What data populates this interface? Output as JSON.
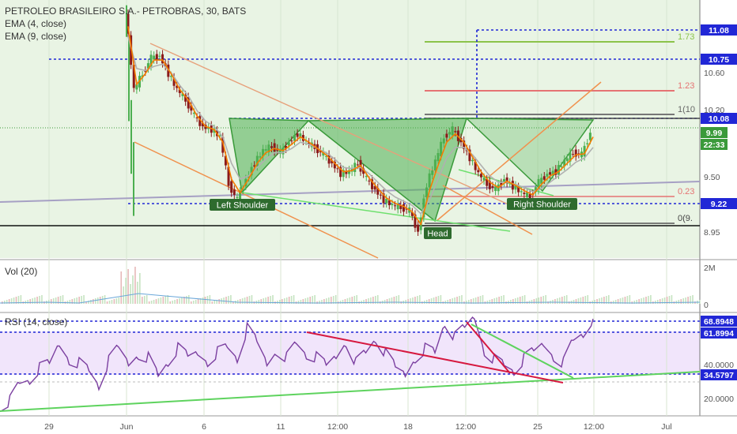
{
  "header": {
    "title": "PETROLEO BRASILEIRO S.A.- PETROBRAS, 30, BATS",
    "ema4": "EMA (4, close)",
    "ema9": "EMA (9, close)"
  },
  "volume_pane": {
    "label": "Vol (20)",
    "axis_ticks": [
      "2M",
      "0"
    ]
  },
  "rsi_pane": {
    "label": "RSI (14, close)",
    "axis_ticks": [
      "40.0000",
      "20.0000"
    ]
  },
  "price_axis_ticks": [
    "11.08",
    "10.60",
    "10.20",
    "9.50",
    "8.95"
  ],
  "price_tags": [
    {
      "text": "11.08",
      "color": "#2127d6"
    },
    {
      "text": "10.75",
      "color": "#2127d6"
    },
    {
      "text": "10.08",
      "color": "#2127d6"
    },
    {
      "text": "9.99",
      "color": "#3a9a3a"
    },
    {
      "text": "22:33",
      "color": "#3a9a3a"
    },
    {
      "text": "9.22",
      "color": "#2127d6"
    }
  ],
  "rsi_tags": [
    {
      "text": "68.8948",
      "color": "#2127d6"
    },
    {
      "text": "61.8994",
      "color": "#2127d6"
    },
    {
      "text": "34.5797",
      "color": "#2127d6"
    }
  ],
  "fib_labels": [
    {
      "text": "1.73",
      "color": "#8bc34a"
    },
    {
      "text": "1.23",
      "color": "#e57373"
    },
    {
      "text": "1(10",
      "color": "#666666"
    },
    {
      "text": "0.23",
      "color": "#e57373"
    },
    {
      "text": "0(9.",
      "color": "#444444"
    }
  ],
  "pattern_labels": {
    "left": "Left Shoulder",
    "head": "Head",
    "right": "Right Shoulder"
  },
  "x_ticks": [
    "29",
    "Jun",
    "6",
    "11",
    "12:00",
    "18",
    "12:00",
    "25",
    "12:00",
    "Jul"
  ],
  "colors": {
    "ema4": "#f57c00",
    "ema9": "#b0b0b0",
    "up": "#4caf50",
    "down": "#8b1a1a",
    "fill": "#2e9b2e",
    "rsi": "#7b3fa0"
  },
  "chart_data": {
    "type": "candlestick",
    "title": "PETROLEO BRASILEIRO S.A.- PETROBRAS, 30, BATS",
    "price_points": [
      [
        0,
        11.15
      ],
      [
        3,
        10.4
      ],
      [
        6,
        10.55
      ],
      [
        9,
        10.7
      ],
      [
        12,
        10.72
      ],
      [
        15,
        10.55
      ],
      [
        18,
        10.4
      ],
      [
        21,
        10.3
      ],
      [
        24,
        10.15
      ],
      [
        27,
        10.05
      ],
      [
        30,
        10.02
      ],
      [
        33,
        9.95
      ],
      [
        36,
        9.5
      ],
      [
        39,
        9.35
      ],
      [
        42,
        9.55
      ],
      [
        45,
        9.7
      ],
      [
        48,
        9.82
      ],
      [
        51,
        9.86
      ],
      [
        54,
        9.8
      ],
      [
        57,
        9.9
      ],
      [
        60,
        9.98
      ],
      [
        63,
        9.9
      ],
      [
        66,
        9.85
      ],
      [
        69,
        9.78
      ],
      [
        72,
        9.7
      ],
      [
        75,
        9.6
      ],
      [
        78,
        9.62
      ],
      [
        81,
        9.7
      ],
      [
        84,
        9.55
      ],
      [
        87,
        9.45
      ],
      [
        90,
        9.35
      ],
      [
        93,
        9.3
      ],
      [
        96,
        9.28
      ],
      [
        99,
        9.25
      ],
      [
        102,
        9.05
      ],
      [
        105,
        9.5
      ],
      [
        108,
        9.72
      ],
      [
        111,
        9.95
      ],
      [
        114,
        10.02
      ],
      [
        117,
        9.9
      ],
      [
        120,
        9.75
      ],
      [
        123,
        9.6
      ],
      [
        126,
        9.5
      ],
      [
        129,
        9.45
      ],
      [
        132,
        9.55
      ],
      [
        135,
        9.48
      ],
      [
        138,
        9.42
      ],
      [
        141,
        9.38
      ],
      [
        144,
        9.52
      ],
      [
        147,
        9.6
      ],
      [
        150,
        9.62
      ],
      [
        153,
        9.72
      ],
      [
        156,
        9.8
      ],
      [
        159,
        9.78
      ],
      [
        162,
        9.99
      ]
    ],
    "ema4": [
      [
        0,
        11.0
      ],
      [
        3,
        10.45
      ],
      [
        6,
        10.55
      ],
      [
        9,
        10.68
      ],
      [
        12,
        10.68
      ],
      [
        15,
        10.55
      ],
      [
        18,
        10.4
      ],
      [
        21,
        10.3
      ],
      [
        24,
        10.15
      ],
      [
        27,
        10.05
      ],
      [
        30,
        10.02
      ],
      [
        33,
        9.9
      ],
      [
        36,
        9.55
      ],
      [
        39,
        9.42
      ],
      [
        42,
        9.55
      ],
      [
        45,
        9.7
      ],
      [
        48,
        9.8
      ],
      [
        51,
        9.84
      ],
      [
        54,
        9.82
      ],
      [
        57,
        9.88
      ],
      [
        60,
        9.95
      ],
      [
        63,
        9.9
      ],
      [
        66,
        9.84
      ],
      [
        69,
        9.78
      ],
      [
        72,
        9.7
      ],
      [
        75,
        9.62
      ],
      [
        78,
        9.63
      ],
      [
        81,
        9.68
      ],
      [
        84,
        9.56
      ],
      [
        87,
        9.46
      ],
      [
        90,
        9.37
      ],
      [
        93,
        9.32
      ],
      [
        96,
        9.29
      ],
      [
        99,
        9.24
      ],
      [
        102,
        9.12
      ],
      [
        105,
        9.44
      ],
      [
        108,
        9.68
      ],
      [
        111,
        9.9
      ],
      [
        114,
        9.98
      ],
      [
        117,
        9.9
      ],
      [
        120,
        9.76
      ],
      [
        123,
        9.62
      ],
      [
        126,
        9.52
      ],
      [
        129,
        9.47
      ],
      [
        132,
        9.53
      ],
      [
        135,
        9.49
      ],
      [
        138,
        9.44
      ],
      [
        141,
        9.4
      ],
      [
        144,
        9.5
      ],
      [
        147,
        9.58
      ],
      [
        150,
        9.62
      ],
      [
        153,
        9.7
      ],
      [
        156,
        9.78
      ],
      [
        159,
        9.79
      ],
      [
        162,
        9.95
      ]
    ],
    "ema9": [
      [
        0,
        10.9
      ],
      [
        3,
        10.6
      ],
      [
        6,
        10.58
      ],
      [
        9,
        10.62
      ],
      [
        12,
        10.64
      ],
      [
        15,
        10.56
      ],
      [
        18,
        10.44
      ],
      [
        21,
        10.34
      ],
      [
        24,
        10.2
      ],
      [
        27,
        10.1
      ],
      [
        30,
        10.05
      ],
      [
        33,
        9.95
      ],
      [
        36,
        9.7
      ],
      [
        39,
        9.55
      ],
      [
        42,
        9.58
      ],
      [
        45,
        9.66
      ],
      [
        48,
        9.74
      ],
      [
        51,
        9.8
      ],
      [
        54,
        9.8
      ],
      [
        57,
        9.84
      ],
      [
        60,
        9.9
      ],
      [
        63,
        9.88
      ],
      [
        66,
        9.84
      ],
      [
        69,
        9.8
      ],
      [
        72,
        9.74
      ],
      [
        75,
        9.66
      ],
      [
        78,
        9.65
      ],
      [
        81,
        9.66
      ],
      [
        84,
        9.6
      ],
      [
        87,
        9.52
      ],
      [
        90,
        9.44
      ],
      [
        93,
        9.38
      ],
      [
        96,
        9.34
      ],
      [
        99,
        9.3
      ],
      [
        102,
        9.22
      ],
      [
        105,
        9.35
      ],
      [
        108,
        9.55
      ],
      [
        111,
        9.75
      ],
      [
        114,
        9.85
      ],
      [
        117,
        9.85
      ],
      [
        120,
        9.78
      ],
      [
        123,
        9.68
      ],
      [
        126,
        9.58
      ],
      [
        129,
        9.52
      ],
      [
        132,
        9.52
      ],
      [
        135,
        9.5
      ],
      [
        138,
        9.47
      ],
      [
        141,
        9.43
      ],
      [
        144,
        9.46
      ],
      [
        147,
        9.52
      ],
      [
        150,
        9.58
      ],
      [
        153,
        9.64
      ],
      [
        156,
        9.71
      ],
      [
        159,
        9.75
      ],
      [
        162,
        9.85
      ]
    ],
    "neckline": 10.08,
    "levels": {
      "fib_1_73": 11.0,
      "fib_1_23": 10.44,
      "fib_1": 10.12,
      "fib_0_23": 9.3,
      "fib_0": 9.0,
      "dashed_11_08": 11.08,
      "dashed_10_75": 10.75,
      "dashed_9_22": 9.22,
      "last_price": 9.99
    },
    "rsi": [
      [
        0,
        21
      ],
      [
        5,
        24
      ],
      [
        10,
        33
      ],
      [
        15,
        35
      ],
      [
        20,
        41
      ],
      [
        25,
        43
      ],
      [
        30,
        55
      ],
      [
        35,
        47
      ],
      [
        40,
        45
      ],
      [
        45,
        40
      ],
      [
        50,
        32
      ],
      [
        55,
        45
      ],
      [
        60,
        52
      ],
      [
        65,
        44
      ],
      [
        70,
        50
      ],
      [
        75,
        48
      ],
      [
        80,
        37
      ],
      [
        85,
        45
      ],
      [
        90,
        52
      ],
      [
        95,
        47
      ],
      [
        100,
        50
      ],
      [
        105,
        46
      ],
      [
        110,
        51
      ],
      [
        115,
        53
      ],
      [
        120,
        47
      ],
      [
        125,
        63
      ],
      [
        130,
        55
      ],
      [
        135,
        44
      ],
      [
        140,
        52
      ],
      [
        145,
        48
      ],
      [
        150,
        55
      ],
      [
        155,
        49
      ],
      [
        160,
        47
      ],
      [
        165,
        42
      ],
      [
        170,
        48
      ],
      [
        175,
        57
      ],
      [
        180,
        45
      ],
      [
        185,
        50
      ],
      [
        190,
        58
      ],
      [
        195,
        49
      ],
      [
        200,
        41
      ],
      [
        205,
        38
      ],
      [
        210,
        48
      ],
      [
        215,
        53
      ],
      [
        220,
        50
      ],
      [
        225,
        67
      ],
      [
        230,
        58
      ],
      [
        235,
        63
      ],
      [
        240,
        70
      ],
      [
        245,
        52
      ],
      [
        250,
        47
      ],
      [
        255,
        43
      ],
      [
        260,
        40
      ],
      [
        265,
        46
      ],
      [
        270,
        50
      ],
      [
        275,
        55
      ],
      [
        280,
        49
      ],
      [
        285,
        45
      ],
      [
        290,
        57
      ],
      [
        295,
        61
      ],
      [
        300,
        68.89
      ]
    ],
    "rsi_levels": {
      "upper": 68.8948,
      "mid": 61.8994,
      "lower": 34.5797
    },
    "price_ylim": [
      8.8,
      11.25
    ],
    "rsi_ylim": [
      15,
      72
    ]
  }
}
